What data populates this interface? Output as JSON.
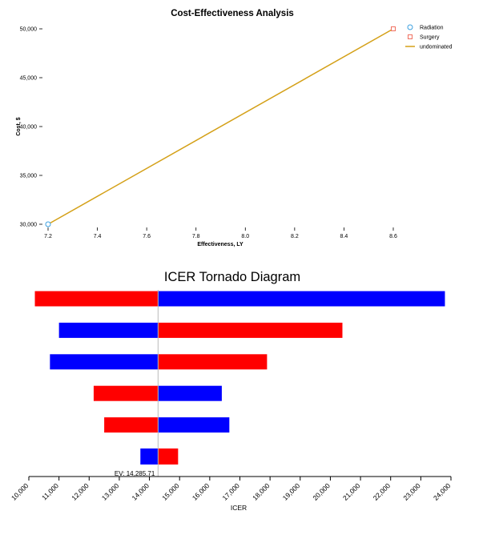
{
  "chart_data": [
    {
      "type": "scatter",
      "title": "Cost-Effectiveness Analysis",
      "xlabel": "Effectiveness, LY",
      "ylabel": "Cost, $",
      "xlim": [
        7.2,
        8.6
      ],
      "ylim": [
        30000,
        50000
      ],
      "xticks": [
        7.2,
        7.4,
        7.6,
        7.8,
        8.0,
        8.2,
        8.4,
        8.6
      ],
      "xtick_labels": [
        "7.2",
        "7.4",
        "7.6",
        "7.8",
        "8.0",
        "8.2",
        "8.4",
        "8.6"
      ],
      "yticks": [
        30000,
        35000,
        40000,
        45000,
        50000
      ],
      "ytick_labels": [
        "30,000",
        "35,000",
        "40,000",
        "45,000",
        "50,000"
      ],
      "legend_position": "top-right",
      "series": [
        {
          "name": "Radiation",
          "marker": "circle",
          "color": "#3ca0e0",
          "x": [
            7.2
          ],
          "y": [
            30000
          ]
        },
        {
          "name": "Surgery",
          "marker": "square",
          "color": "#f07060",
          "x": [
            8.6
          ],
          "y": [
            50000
          ]
        },
        {
          "name": "undominated",
          "marker": "line",
          "color": "#d4a017",
          "x": [
            7.2,
            8.6
          ],
          "y": [
            30000,
            50000
          ]
        }
      ]
    },
    {
      "type": "bar",
      "orientation": "horizontal",
      "title": "ICER Tornado Diagram",
      "xlabel": "ICER",
      "xlim": [
        10000,
        24000
      ],
      "xticks": [
        10000,
        11000,
        12000,
        13000,
        14000,
        15000,
        16000,
        17000,
        18000,
        19000,
        20000,
        21000,
        22000,
        23000,
        24000
      ],
      "xtick_labels": [
        "10,000",
        "11,000",
        "12,000",
        "13,000",
        "14,000",
        "15,000",
        "16,000",
        "17,000",
        "18,000",
        "19,000",
        "20,000",
        "21,000",
        "22,000",
        "23,000",
        "24,000"
      ],
      "base_value": 14285.71,
      "ev_label": "EV: 14,285.71",
      "colors": {
        "red": "#ff0000",
        "blue": "#0000ff",
        "ev_line": "#bbbbbb"
      },
      "bars": [
        {
          "low": 10200,
          "high": 23800,
          "left_color": "red",
          "right_color": "blue"
        },
        {
          "low": 11000,
          "high": 20400,
          "left_color": "blue",
          "right_color": "red"
        },
        {
          "low": 10700,
          "high": 17900,
          "left_color": "blue",
          "right_color": "red"
        },
        {
          "low": 12150,
          "high": 16400,
          "left_color": "red",
          "right_color": "blue"
        },
        {
          "low": 12500,
          "high": 16650,
          "left_color": "red",
          "right_color": "blue"
        },
        {
          "low": 13700,
          "high": 14950,
          "left_color": "blue",
          "right_color": "red"
        }
      ]
    }
  ]
}
